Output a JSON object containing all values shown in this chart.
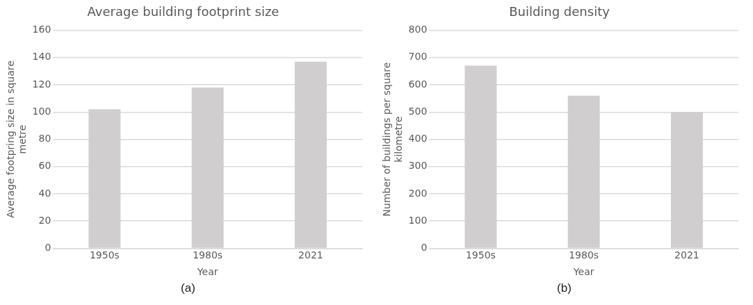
{
  "chart_data": [
    {
      "type": "bar",
      "title": "Average building footprint size",
      "xlabel": "Year",
      "ylabel": "Average footpring size  in square metre",
      "categories": [
        "1950s",
        "1980s",
        "2021"
      ],
      "values": [
        102,
        118,
        137
      ],
      "color": "#d0cece",
      "ylim": [
        0,
        160
      ],
      "yticks": [
        0,
        20,
        40,
        60,
        80,
        100,
        120,
        140,
        160
      ],
      "grid": "y",
      "annotations": [
        "(a)"
      ]
    },
    {
      "type": "bar",
      "title": "Building density",
      "xlabel": "Year",
      "ylabel": "Number of buildings per square kilometre",
      "categories": [
        "1950s",
        "1980s",
        "2021"
      ],
      "values": [
        670,
        560,
        500
      ],
      "color": "#d0cece",
      "ylim": [
        0,
        800
      ],
      "yticks": [
        0,
        100,
        200,
        300,
        400,
        500,
        600,
        700,
        800
      ],
      "grid": "y",
      "annotations": [
        "(b)"
      ]
    }
  ]
}
